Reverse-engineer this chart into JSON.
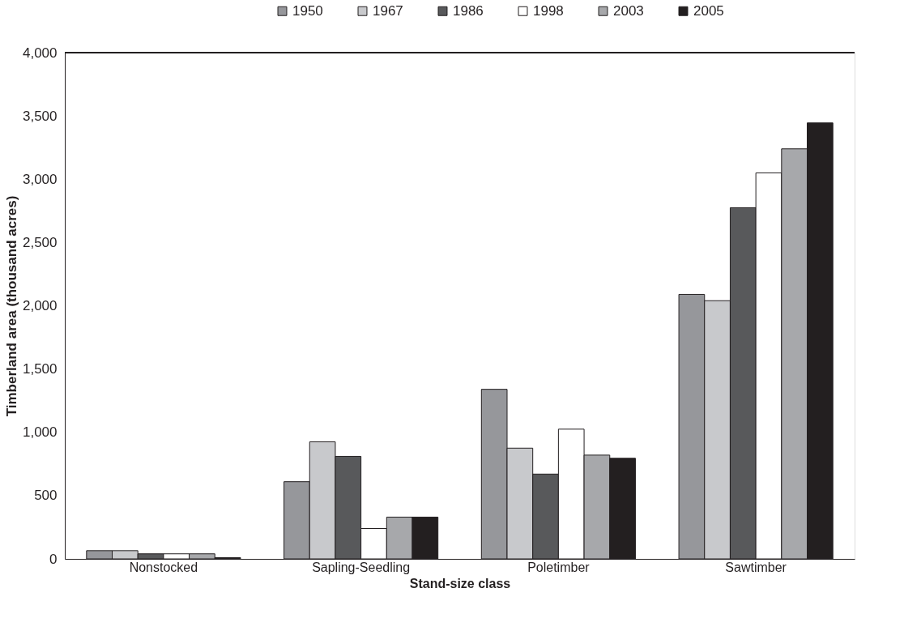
{
  "chart_data": {
    "type": "bar",
    "xlabel": "Stand-size class",
    "ylabel": "Timberland area (thousand acres)",
    "categories": [
      "Nonstocked",
      "Sapling-Seedling",
      "Poletimber",
      "Sawtimber"
    ],
    "series": [
      {
        "name": "1950",
        "color": "#96979b",
        "values": [
          65,
          610,
          1340,
          2090
        ]
      },
      {
        "name": "1967",
        "color": "#c8c9cc",
        "values": [
          65,
          925,
          875,
          2040
        ]
      },
      {
        "name": "1986",
        "color": "#58595b",
        "values": [
          40,
          810,
          670,
          2775
        ]
      },
      {
        "name": "1998",
        "color": "#ffffff",
        "values": [
          40,
          240,
          1025,
          3050
        ]
      },
      {
        "name": "2003",
        "color": "#a7a8ab",
        "values": [
          40,
          330,
          820,
          3240
        ]
      },
      {
        "name": "2005",
        "color": "#231f20",
        "values": [
          10,
          330,
          795,
          3445
        ]
      }
    ],
    "ylim": [
      0,
      4000
    ],
    "yticks": [
      0,
      500,
      {
        "value": 1000,
        "label": "1,000"
      },
      {
        "value": 1500,
        "label": "1,500"
      },
      {
        "value": 2000,
        "label": "2,000"
      },
      {
        "value": 2500,
        "label": "2,500"
      },
      {
        "value": 3000,
        "label": "3,000"
      },
      {
        "value": 3500,
        "label": "3,500"
      },
      {
        "value": 4000,
        "label": "4,000"
      }
    ],
    "grid": false,
    "legend": "top"
  }
}
